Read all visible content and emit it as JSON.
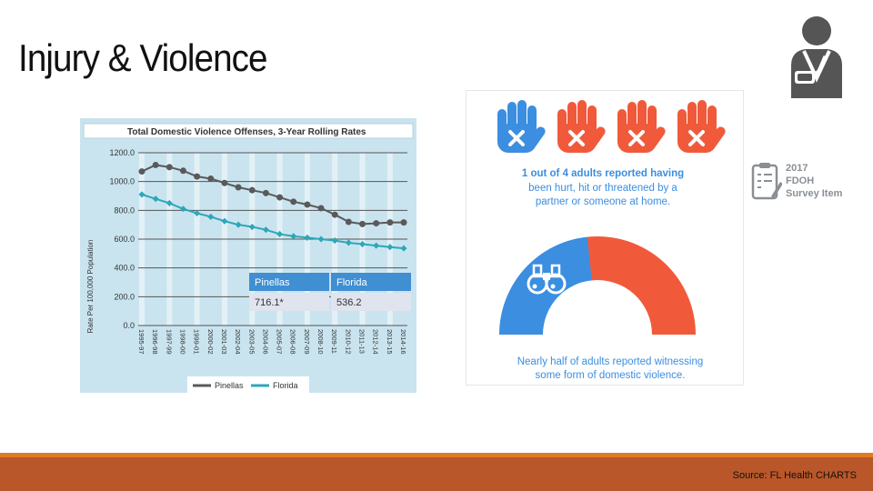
{
  "slide": {
    "title": "Injury & Violence",
    "source": "Source: FL Health CHARTS"
  },
  "icons": {
    "person": "injured-person-sling-icon",
    "clipboard": "clipboard-survey-icon",
    "hands": "stop-hand-icon",
    "binoculars": "binoculars-icon"
  },
  "chart_data": {
    "type": "line",
    "title": "Total Domestic Violence Offenses, 3-Year Rolling Rates",
    "ylabel": "Rate Per 100,000 Population",
    "ylim": [
      0,
      1200
    ],
    "yticks": [
      "0.0",
      "200.0",
      "400.0",
      "600.0",
      "800.0",
      "1000.0",
      "1200.0"
    ],
    "categories": [
      "1995-97",
      "1996-98",
      "1997-99",
      "1998-00",
      "1999-01",
      "2000-02",
      "2001-03",
      "2002-04",
      "2003-05",
      "2004-06",
      "2005-07",
      "2006-08",
      "2007-09",
      "2008-10",
      "2009-11",
      "2010-12",
      "2011-13",
      "2012-14",
      "2013-15",
      "2014-16"
    ],
    "series": [
      {
        "name": "Pinellas",
        "color": "#5a5a5a",
        "values": [
          1070,
          1115,
          1100,
          1075,
          1035,
          1020,
          990,
          960,
          940,
          920,
          890,
          860,
          840,
          815,
          770,
          720,
          705,
          710,
          716,
          716
        ]
      },
      {
        "name": "Florida",
        "color": "#2ea7b8",
        "values": [
          910,
          880,
          850,
          810,
          780,
          755,
          725,
          700,
          685,
          665,
          635,
          620,
          610,
          600,
          590,
          575,
          565,
          555,
          545,
          536
        ]
      }
    ],
    "table": {
      "headers": [
        "Pinellas",
        "Florida"
      ],
      "values": [
        "716.1*",
        "536.2"
      ]
    },
    "grid": true,
    "legend": "bottom"
  },
  "infographic": {
    "stat1_line1": "1 out of 4 adults reported having",
    "stat1_line2": "been hurt, hit or threatened by a",
    "stat1_line3": "partner or someone at home.",
    "stat2_line1": "Nearly half of adults reported witnessing",
    "stat2_line2": "some form of domestic violence.",
    "hand_colors": [
      "#3b8ee0",
      "#f05a3b",
      "#f05a3b",
      "#f05a3b"
    ],
    "gauge_colors": {
      "left": "#3b8ee0",
      "right": "#f05a3b"
    },
    "gauge_fraction": 0.47
  },
  "badge": {
    "line1": "2017",
    "line2": "FDOH",
    "line3": "Survey Item"
  }
}
